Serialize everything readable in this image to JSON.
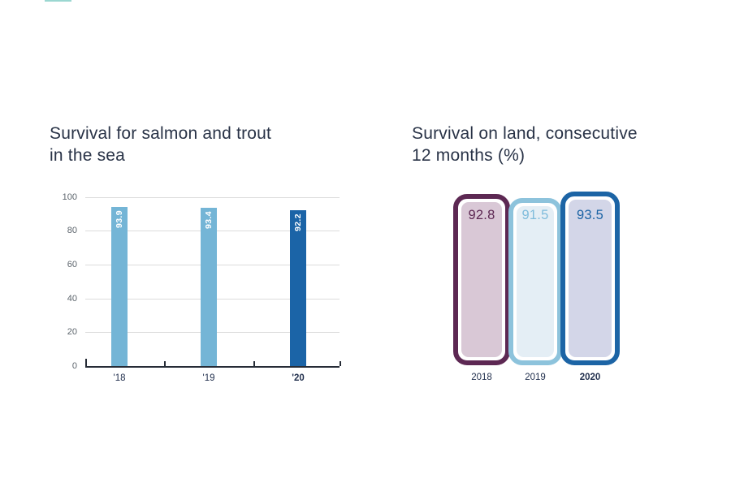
{
  "page": {
    "background": "#ffffff",
    "top_accent": {
      "color": "#66c2b8"
    }
  },
  "chart_data": [
    {
      "type": "bar",
      "title": "Survival for salmon and trout in the sea",
      "title_lines": [
        "Survival for salmon and trout",
        "in the sea"
      ],
      "categories": [
        "'18",
        "'19",
        "'20"
      ],
      "values": [
        93.9,
        93.4,
        92.2
      ],
      "value_labels": [
        "93.9",
        "93.4",
        "92.2"
      ],
      "ylim": [
        0,
        100
      ],
      "yticks": [
        0,
        20,
        40,
        60,
        80,
        100
      ],
      "grid": true,
      "legend": false,
      "highlight_index": 2,
      "colors": {
        "bars": [
          "#74b5d6",
          "#74b5d6",
          "#1b64a7"
        ],
        "value_label": "#ffffff",
        "axis": "#262c36",
        "gridline": "#dcdcdc",
        "ytick_label": "#5c646c",
        "xtick_label": "#22304e"
      }
    },
    {
      "type": "bar",
      "variant": "rounded-outline-pills",
      "title": "Survival on land, consecutive 12 months (%)",
      "title_lines": [
        "Survival on land, consecutive",
        "12 months (%)"
      ],
      "categories": [
        "2018",
        "2019",
        "2020"
      ],
      "values": [
        92.8,
        91.5,
        93.5
      ],
      "value_labels": [
        "92.8",
        "91.5",
        "93.5"
      ],
      "highlight_index": 2,
      "legend": false,
      "series_styles": [
        {
          "border": "#5d2853",
          "fill": "#d9c8d6",
          "text": "#5d2853"
        },
        {
          "border": "#8dc3dc",
          "fill": "#e4eef5",
          "text": "#7fbcdc"
        },
        {
          "border": "#1c64a5",
          "fill": "#d3d6e8",
          "text": "#1c64a5"
        }
      ],
      "label_color": "#22304e"
    }
  ]
}
